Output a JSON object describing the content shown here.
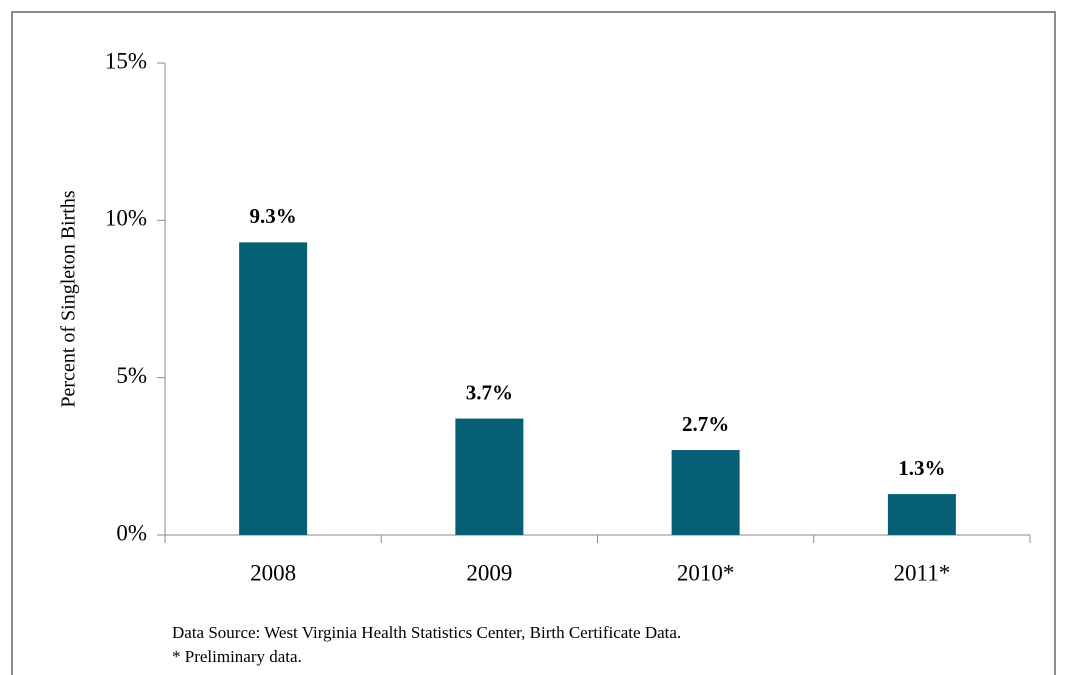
{
  "chart_data": {
    "type": "bar",
    "y_label": "Percent of Singleton Births",
    "categories": [
      "2008",
      "2009",
      "2010*",
      "2011*"
    ],
    "values": [
      9.3,
      3.7,
      2.7,
      1.3
    ],
    "value_labels": [
      "9.3%",
      "3.7%",
      "2.7%",
      "1.3%"
    ],
    "color": "#065f75",
    "ylim": [
      0,
      15
    ],
    "yticks": [
      {
        "value": 0,
        "label": "0%"
      },
      {
        "value": 5,
        "label": "5%"
      },
      {
        "value": 10,
        "label": "10%"
      },
      {
        "value": 15,
        "label": "15%"
      }
    ],
    "notes": [
      "Data Source: West Virginia Health Statistics Center, Birth Certificate Data.",
      "* Preliminary data."
    ]
  }
}
